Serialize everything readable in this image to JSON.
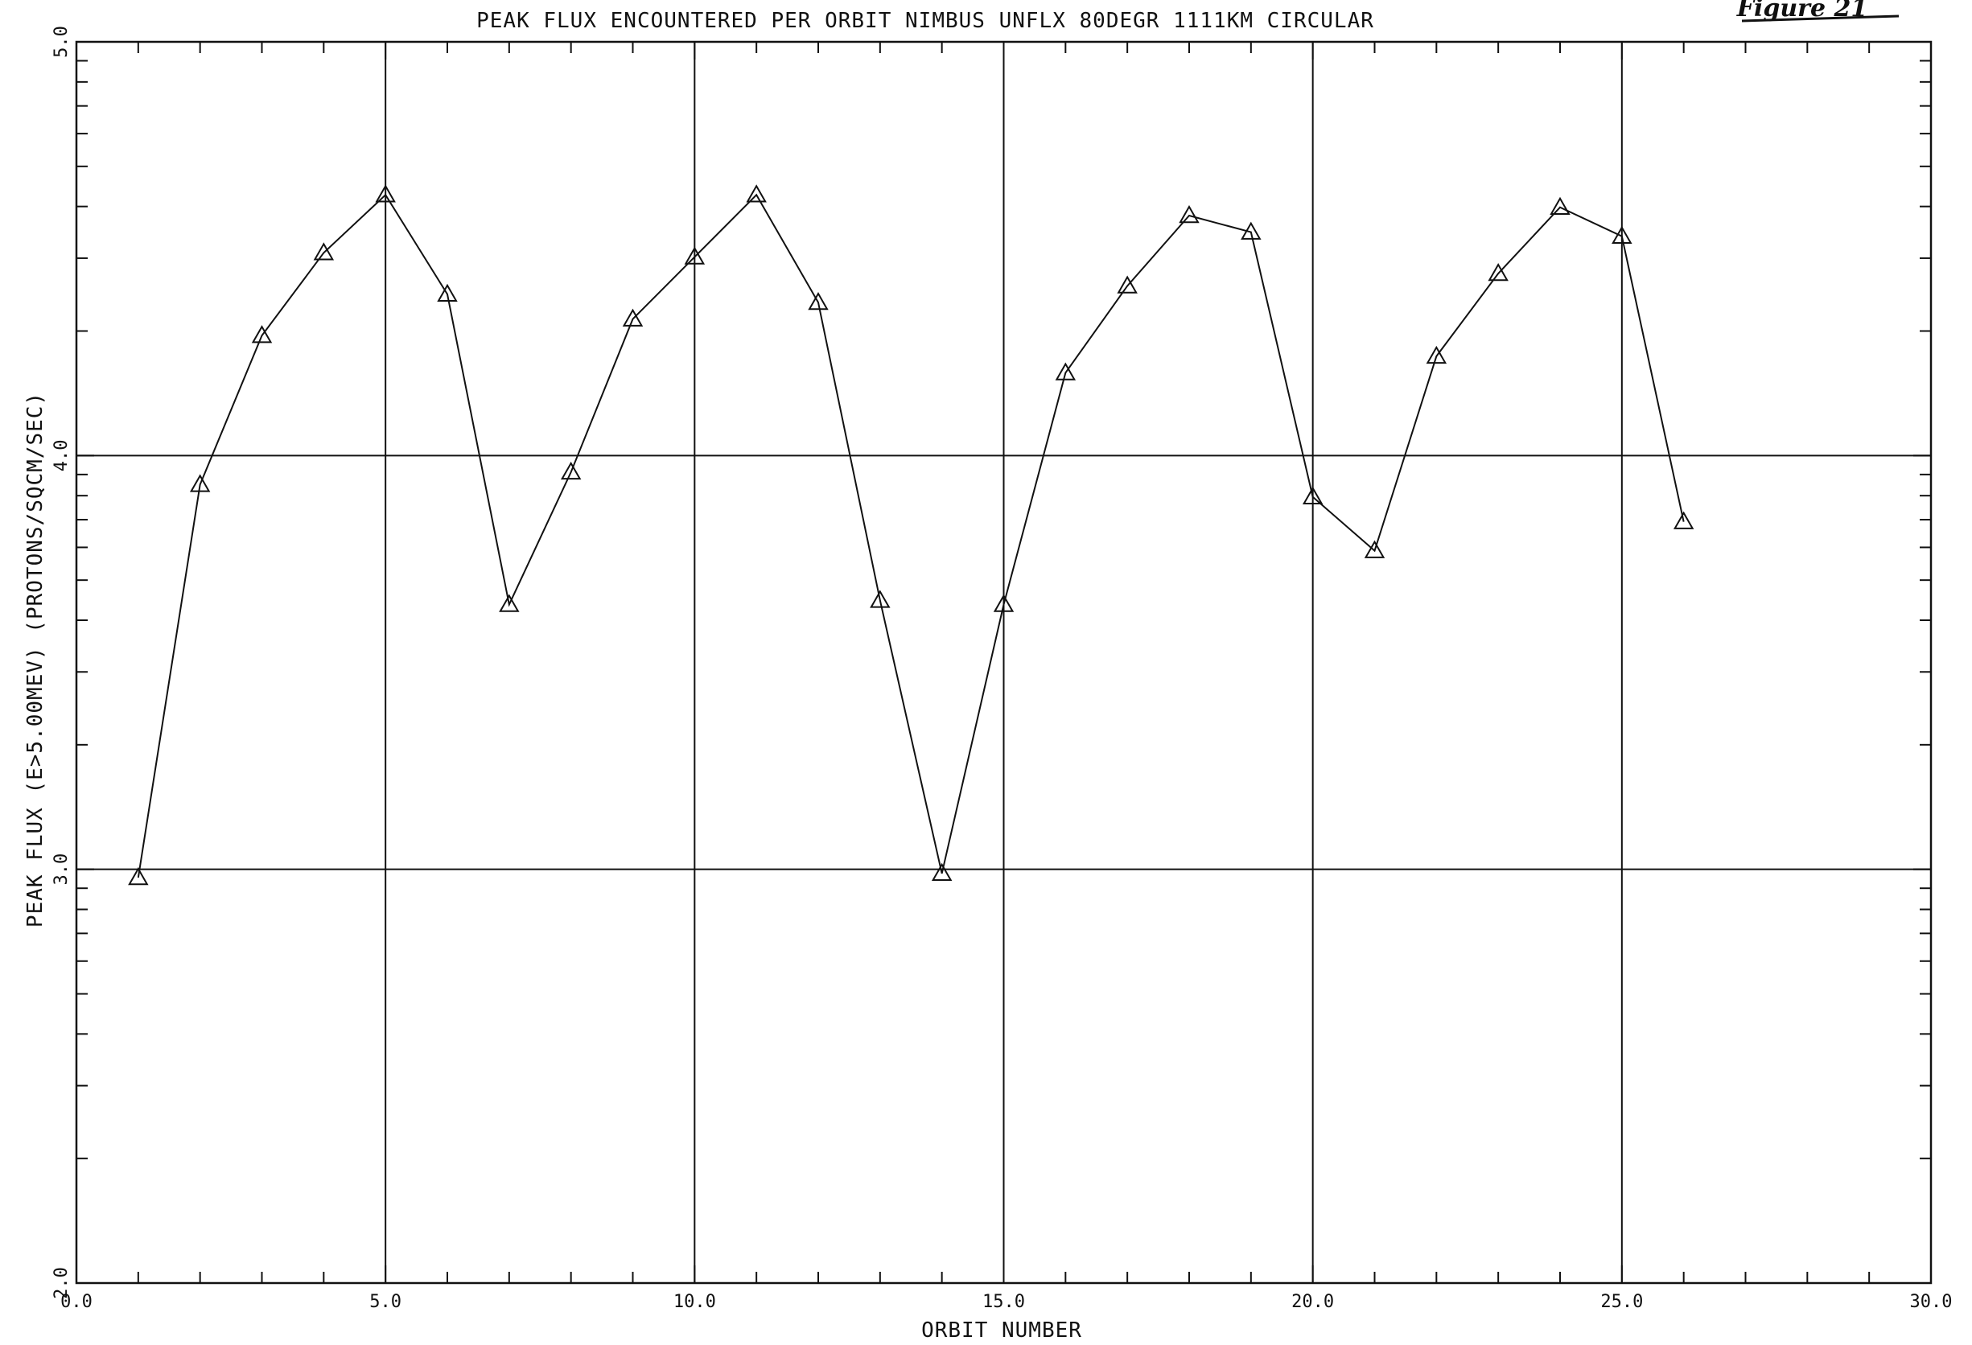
{
  "figure_tag": "Figure 21",
  "chart_data": {
    "type": "line",
    "title": "PEAK FLUX ENCOUNTERED PER ORBIT NIMBUS UNFLX  80DEGR     1111KM  CIRCULAR",
    "xlabel": "ORBIT NUMBER",
    "ylabel": "PEAK FLUX  (E>5.00MEV)     (PROTONS/SQCM/SEC)",
    "xlim": [
      0,
      30
    ],
    "ylim": [
      2.0,
      5.0
    ],
    "y_scale": "log10 exponent (decades)",
    "x_tick_labels": [
      "0.0",
      "5.0",
      "10.0",
      "15.0",
      "20.0",
      "25.0",
      "30.0"
    ],
    "y_tick_labels": [
      "2.0",
      "3.0",
      "4.0",
      "5.0"
    ],
    "grid": "major lines at x = 5, 10, 15, 20, 25 and y = 3.0, 4.0",
    "marker": "triangle",
    "line_color": "#111111",
    "x": [
      1,
      2,
      3,
      4,
      5,
      6,
      7,
      8,
      9,
      10,
      11,
      12,
      13,
      14,
      15,
      16,
      17,
      18,
      19,
      20,
      21,
      22,
      23,
      24,
      25,
      26
    ],
    "y": [
      2.98,
      3.93,
      4.29,
      4.49,
      4.63,
      4.39,
      3.64,
      3.96,
      4.33,
      4.48,
      4.63,
      4.37,
      3.65,
      2.99,
      3.64,
      4.2,
      4.41,
      4.58,
      4.54,
      3.9,
      3.77,
      4.24,
      4.44,
      4.6,
      4.53,
      3.84
    ]
  }
}
